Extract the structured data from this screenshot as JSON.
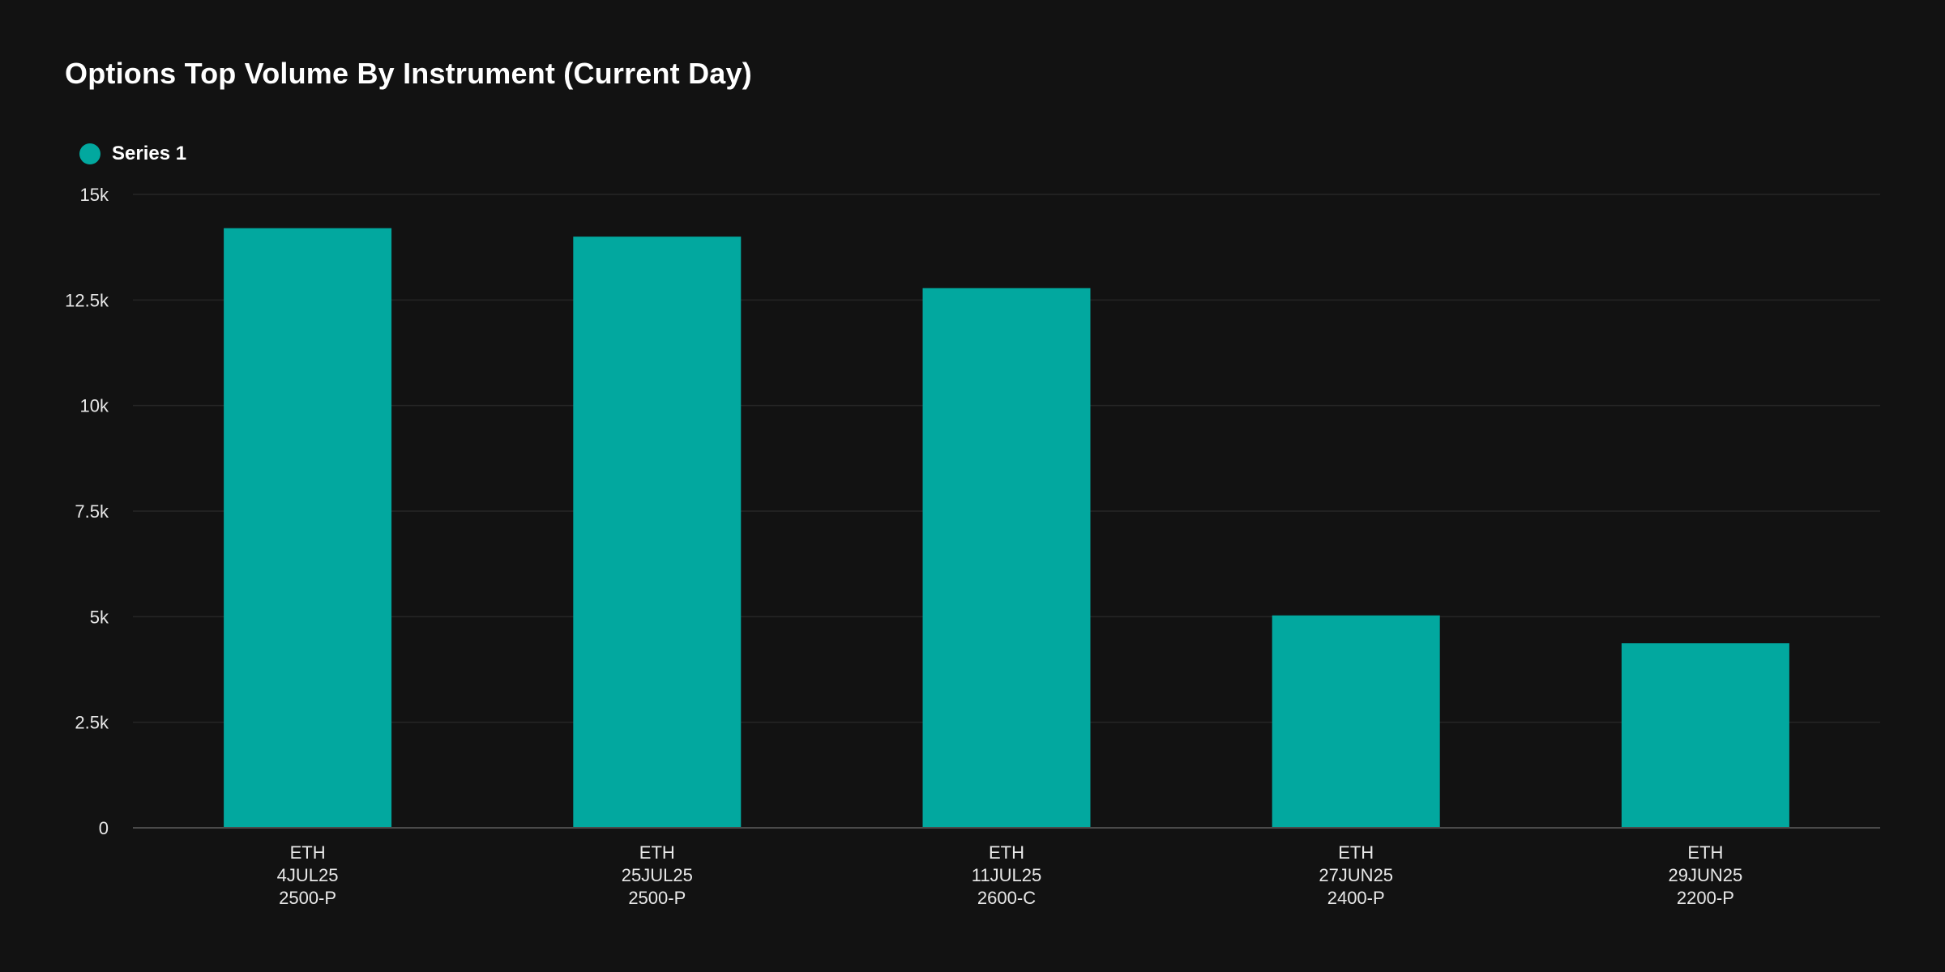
{
  "title": "Options Top Volume By Instrument (Current Day)",
  "legend": {
    "label": "Series 1",
    "color": "#02A89F"
  },
  "colors": {
    "background": "#121212",
    "bar": "#02A89F",
    "gridline": "#262626",
    "axis": "#4a4a4a"
  },
  "chart_data": {
    "type": "bar",
    "title": "Options Top Volume By Instrument (Current Day)",
    "categories": [
      [
        "ETH",
        "4JUL25",
        "2500-P"
      ],
      [
        "ETH",
        "25JUL25",
        "2500-P"
      ],
      [
        "ETH",
        "11JUL25",
        "2600-C"
      ],
      [
        "ETH",
        "27JUN25",
        "2400-P"
      ],
      [
        "ETH",
        "29JUN25",
        "2200-P"
      ]
    ],
    "series": [
      {
        "name": "Series 1",
        "values": [
          14200,
          14000,
          12780,
          5030,
          4370
        ]
      }
    ],
    "ylim": [
      0,
      15000
    ],
    "yticks": [
      0,
      2500,
      5000,
      7500,
      10000,
      12500,
      15000
    ],
    "ytick_labels": [
      "0",
      "2.5k",
      "5k",
      "7.5k",
      "10k",
      "12.5k",
      "15k"
    ],
    "xlabel": "",
    "ylabel": "",
    "grid": true,
    "legend_position": "top-left"
  }
}
